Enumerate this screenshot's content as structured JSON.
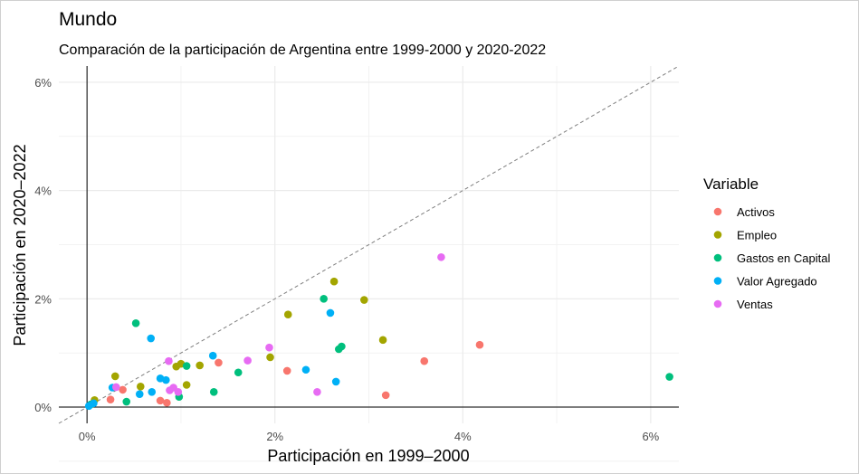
{
  "chart_data": {
    "type": "scatter",
    "title": "Mundo",
    "subtitle": "Comparación de la participación de Argentina entre 1999-2000 y 2020-2022",
    "xlabel": "Participación en 1999–2000",
    "ylabel": "Participación en 2020–2022",
    "xlim": [
      -0.3,
      6.3
    ],
    "ylim": [
      -0.3,
      6.3
    ],
    "x_ticks": [
      0,
      2,
      4,
      6
    ],
    "y_ticks": [
      0,
      2,
      4,
      6
    ],
    "x_tick_labels": [
      "0%",
      "2%",
      "4%",
      "6%"
    ],
    "y_tick_labels": [
      "0%",
      "2%",
      "4%",
      "6%"
    ],
    "grid": true,
    "reference_line": "y = x (dashed)",
    "legend": {
      "title": "Variable",
      "position": "right"
    },
    "series": [
      {
        "name": "Activos",
        "color": "#F8766D",
        "points": [
          [
            0.25,
            0.14
          ],
          [
            0.38,
            0.32
          ],
          [
            0.78,
            0.12
          ],
          [
            0.85,
            0.08
          ],
          [
            1.4,
            0.82
          ],
          [
            2.13,
            0.67
          ],
          [
            3.18,
            0.22
          ],
          [
            3.59,
            0.85
          ],
          [
            4.18,
            1.15
          ]
        ]
      },
      {
        "name": "Empleo",
        "color": "#A3A500",
        "points": [
          [
            0.08,
            0.13
          ],
          [
            0.3,
            0.57
          ],
          [
            0.57,
            0.38
          ],
          [
            0.95,
            0.75
          ],
          [
            1.0,
            0.8
          ],
          [
            1.06,
            0.41
          ],
          [
            1.2,
            0.77
          ],
          [
            1.95,
            0.92
          ],
          [
            2.14,
            1.71
          ],
          [
            2.63,
            2.32
          ],
          [
            2.95,
            1.98
          ],
          [
            3.15,
            1.24
          ]
        ]
      },
      {
        "name": "Gastos en Capital",
        "color": "#00BF7D",
        "points": [
          [
            0.04,
            0.05
          ],
          [
            0.42,
            0.1
          ],
          [
            0.52,
            1.55
          ],
          [
            0.98,
            0.19
          ],
          [
            1.06,
            0.76
          ],
          [
            1.35,
            0.28
          ],
          [
            1.61,
            0.64
          ],
          [
            2.52,
            2.0
          ],
          [
            2.68,
            1.07
          ],
          [
            2.71,
            1.12
          ],
          [
            6.2,
            0.56
          ]
        ]
      },
      {
        "name": "Valor Agregado",
        "color": "#00B0F6",
        "points": [
          [
            0.02,
            0.02
          ],
          [
            0.07,
            0.07
          ],
          [
            0.27,
            0.36
          ],
          [
            0.56,
            0.24
          ],
          [
            0.68,
            1.27
          ],
          [
            0.69,
            0.28
          ],
          [
            0.78,
            0.53
          ],
          [
            0.84,
            0.5
          ],
          [
            1.34,
            0.95
          ],
          [
            2.33,
            0.69
          ],
          [
            2.59,
            1.74
          ],
          [
            2.65,
            0.47
          ]
        ]
      },
      {
        "name": "Ventas",
        "color": "#E76BF3",
        "points": [
          [
            0.31,
            0.37
          ],
          [
            0.87,
            0.85
          ],
          [
            0.88,
            0.31
          ],
          [
            0.92,
            0.36
          ],
          [
            0.97,
            0.28
          ],
          [
            1.71,
            0.86
          ],
          [
            1.94,
            1.1
          ],
          [
            2.45,
            0.28
          ],
          [
            3.77,
            2.77
          ]
        ]
      }
    ]
  }
}
